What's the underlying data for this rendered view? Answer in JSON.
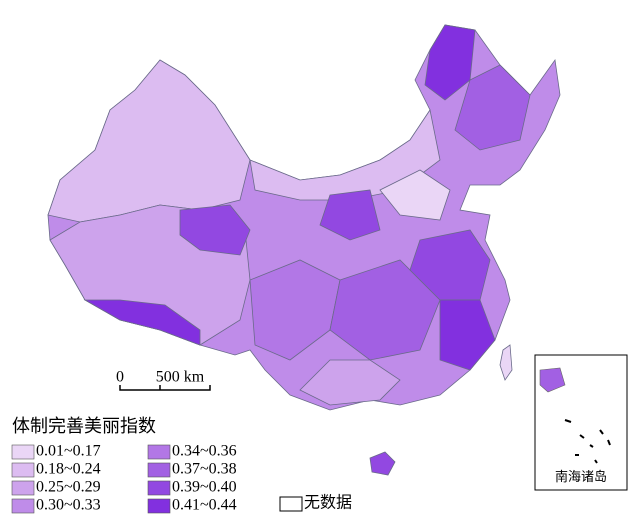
{
  "legend": {
    "title": "体制完善美丽指数",
    "items": [
      {
        "label": "0.01~0.17",
        "color": "#ead6f6"
      },
      {
        "label": "0.18~0.24",
        "color": "#dcbcf1"
      },
      {
        "label": "0.25~0.29",
        "color": "#cda3ec"
      },
      {
        "label": "0.30~0.33",
        "color": "#bf8ce9"
      },
      {
        "label": "0.34~0.36",
        "color": "#b277e6"
      },
      {
        "label": "0.37~0.38",
        "color": "#a260e3"
      },
      {
        "label": "0.39~0.40",
        "color": "#9248e1"
      },
      {
        "label": "0.41~0.44",
        "color": "#8230df"
      }
    ],
    "no_data": "无数据"
  },
  "scale_bar": {
    "start": "0",
    "end": "500 km"
  },
  "inset": {
    "label": "南海诸岛"
  }
}
